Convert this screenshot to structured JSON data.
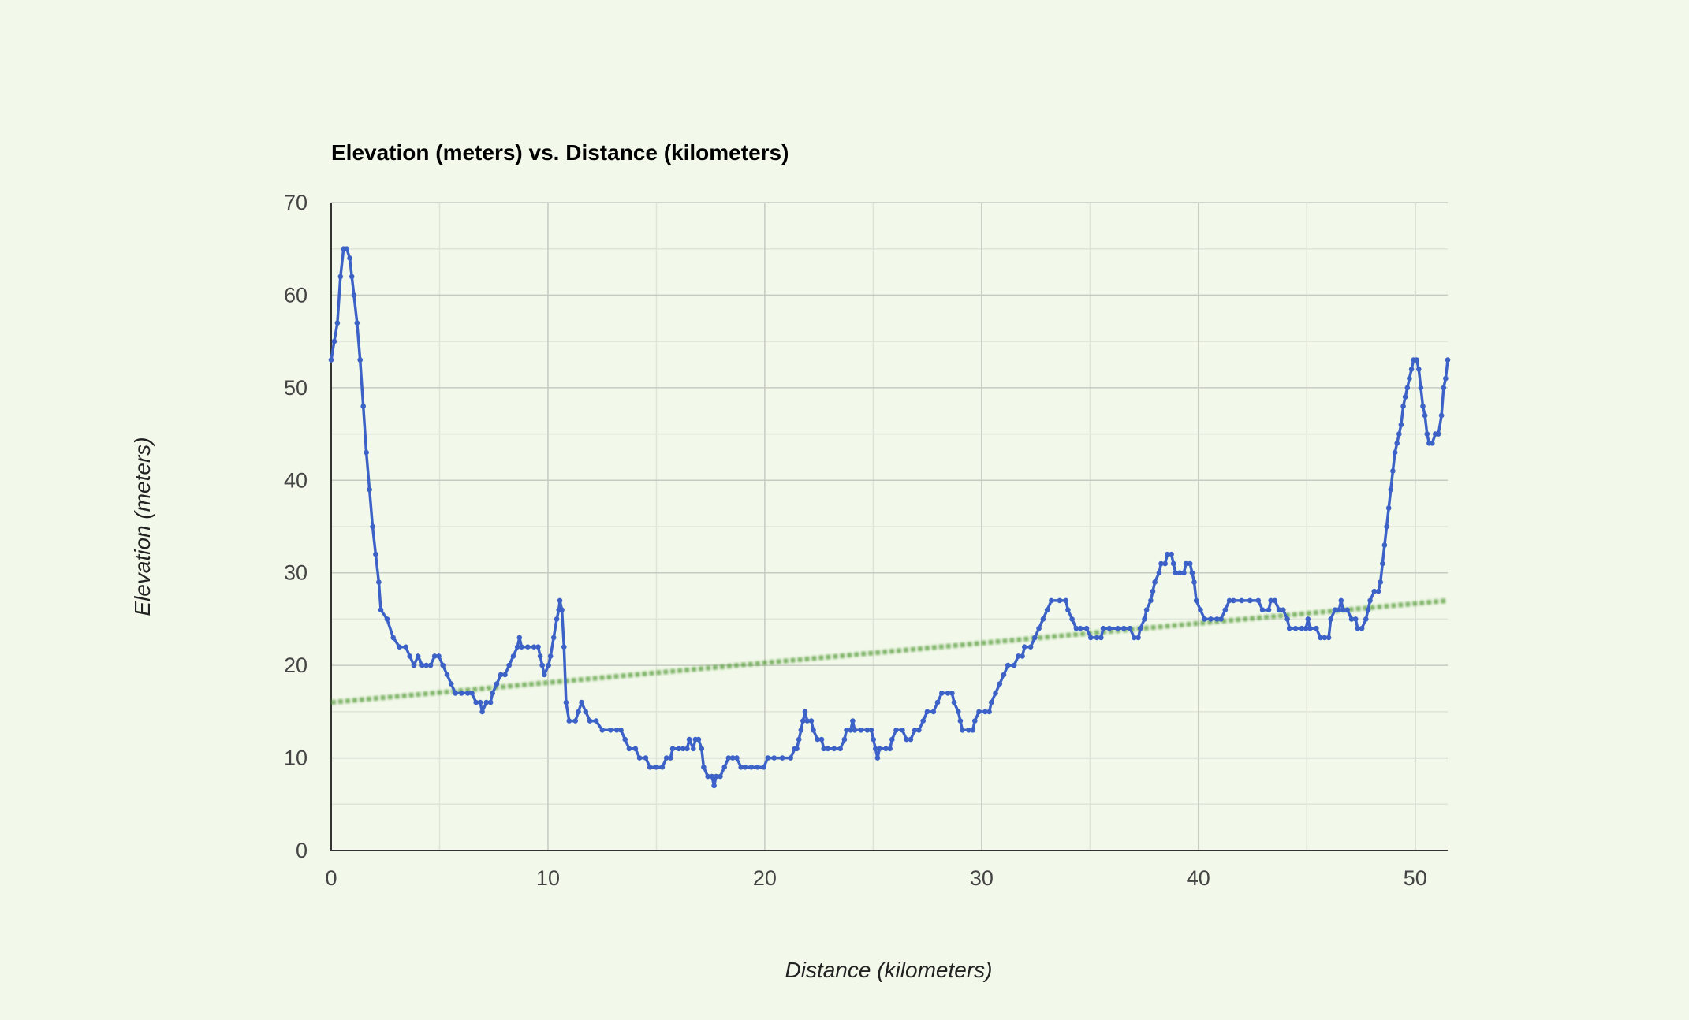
{
  "chart_data": {
    "type": "line",
    "title": "Elevation (meters) vs. Distance (kilometers)",
    "xlabel": "Distance (kilometers)",
    "ylabel": "Elevation (meters)",
    "xlim": [
      0,
      51.5
    ],
    "ylim": [
      0,
      70
    ],
    "xticks": [
      0,
      10,
      20,
      30,
      40,
      50
    ],
    "yticks": [
      0,
      10,
      20,
      30,
      40,
      50,
      60,
      70
    ],
    "grid": true,
    "series": [
      {
        "color": "#3c62c8",
        "marker": "circle",
        "points": [
          [
            0,
            53
          ],
          [
            0.15,
            55
          ],
          [
            0.3,
            57
          ],
          [
            0.45,
            62
          ],
          [
            0.6,
            65
          ],
          [
            0.75,
            65
          ],
          [
            0.9,
            64
          ],
          [
            1.0,
            62
          ],
          [
            1.1,
            60
          ],
          [
            1.25,
            57
          ],
          [
            1.4,
            53
          ],
          [
            1.55,
            48
          ],
          [
            1.7,
            43
          ],
          [
            1.85,
            39
          ],
          [
            2.0,
            35
          ],
          [
            2.15,
            32
          ],
          [
            2.3,
            29
          ],
          [
            2.4,
            26
          ],
          [
            2.7,
            25
          ],
          [
            3.0,
            23
          ],
          [
            3.3,
            22
          ],
          [
            3.6,
            22
          ],
          [
            3.8,
            21
          ],
          [
            4.0,
            20
          ],
          [
            4.2,
            21
          ],
          [
            4.4,
            20
          ],
          [
            4.6,
            20
          ],
          [
            4.8,
            20
          ],
          [
            5.0,
            21
          ],
          [
            5.2,
            21
          ],
          [
            5.4,
            20
          ],
          [
            5.6,
            19
          ],
          [
            5.8,
            18
          ],
          [
            6.0,
            17
          ],
          [
            6.3,
            17
          ],
          [
            6.6,
            17
          ],
          [
            6.8,
            17
          ],
          [
            7.0,
            16
          ],
          [
            7.2,
            16
          ],
          [
            7.3,
            15
          ],
          [
            7.5,
            16
          ],
          [
            7.7,
            16
          ],
          [
            7.8,
            17
          ],
          [
            8.0,
            18
          ],
          [
            8.2,
            19
          ],
          [
            8.4,
            19
          ],
          [
            8.6,
            20
          ],
          [
            8.8,
            21
          ],
          [
            9.0,
            22
          ],
          [
            9.1,
            23
          ],
          [
            9.2,
            22
          ],
          [
            9.5,
            22
          ],
          [
            9.8,
            22
          ],
          [
            10.0,
            22
          ],
          [
            10.1,
            21
          ],
          [
            10.2,
            20
          ],
          [
            10.3,
            19
          ],
          [
            10.5,
            20
          ],
          [
            10.6,
            21
          ],
          [
            10.75,
            23
          ],
          [
            10.9,
            25
          ],
          [
            11.0,
            26
          ],
          [
            11.05,
            27
          ],
          [
            11.15,
            26
          ],
          [
            11.25,
            22
          ],
          [
            11.35,
            16
          ],
          [
            11.5,
            14
          ],
          [
            11.8,
            14
          ],
          [
            11.95,
            15
          ],
          [
            12.1,
            16
          ],
          [
            12.3,
            15
          ],
          [
            12.5,
            14
          ],
          [
            12.8,
            14
          ],
          [
            13.1,
            13
          ],
          [
            13.5,
            13
          ],
          [
            13.8,
            13
          ],
          [
            14.0,
            13
          ],
          [
            14.2,
            12
          ],
          [
            14.4,
            11
          ],
          [
            14.7,
            11
          ],
          [
            14.9,
            10
          ],
          [
            15.2,
            10
          ],
          [
            15.4,
            9
          ],
          [
            15.7,
            9
          ],
          [
            16.0,
            9
          ],
          [
            16.2,
            10
          ],
          [
            16.4,
            10
          ],
          [
            16.5,
            11
          ],
          [
            16.8,
            11
          ],
          [
            17.0,
            11
          ],
          [
            17.2,
            11
          ],
          [
            17.3,
            12
          ],
          [
            17.5,
            11
          ],
          [
            17.6,
            12
          ],
          [
            17.75,
            12
          ],
          [
            17.9,
            11
          ],
          [
            18.0,
            9
          ],
          [
            18.2,
            8
          ],
          [
            18.4,
            8
          ],
          [
            18.5,
            7
          ],
          [
            18.6,
            8
          ],
          [
            18.8,
            8
          ],
          [
            19.0,
            9
          ],
          [
            19.2,
            10
          ],
          [
            19.4,
            10
          ],
          [
            19.6,
            10
          ],
          [
            19.8,
            9
          ],
          [
            20.0,
            9
          ],
          [
            20.3,
            9
          ],
          [
            20.6,
            9
          ],
          [
            20.9,
            9
          ],
          [
            21.1,
            10
          ],
          [
            21.4,
            10
          ],
          [
            21.8,
            10
          ],
          [
            22.2,
            10
          ],
          [
            22.4,
            11
          ],
          [
            22.5,
            11
          ],
          [
            22.6,
            12
          ],
          [
            22.7,
            13
          ],
          [
            22.8,
            14
          ],
          [
            22.9,
            15
          ],
          [
            23.0,
            14
          ],
          [
            23.2,
            14
          ],
          [
            23.3,
            13
          ],
          [
            23.5,
            12
          ],
          [
            23.7,
            12
          ],
          [
            23.8,
            11
          ],
          [
            24.0,
            11
          ],
          [
            24.3,
            11
          ],
          [
            24.6,
            11
          ],
          [
            24.8,
            12
          ],
          [
            24.9,
            13
          ],
          [
            25.1,
            13
          ],
          [
            25.2,
            14
          ],
          [
            25.3,
            13
          ],
          [
            25.6,
            13
          ],
          [
            25.9,
            13
          ],
          [
            26.1,
            13
          ],
          [
            26.2,
            12
          ],
          [
            26.3,
            11
          ],
          [
            26.4,
            10
          ],
          [
            26.5,
            11
          ],
          [
            26.8,
            11
          ],
          [
            27.0,
            11
          ],
          [
            27.1,
            12
          ],
          [
            27.3,
            13
          ],
          [
            27.6,
            13
          ],
          [
            27.8,
            12
          ],
          [
            28.0,
            12
          ],
          [
            28.2,
            13
          ],
          [
            28.4,
            13
          ],
          [
            28.6,
            14
          ],
          [
            28.8,
            15
          ],
          [
            29.1,
            15
          ],
          [
            29.3,
            16
          ],
          [
            29.5,
            17
          ],
          [
            29.8,
            17
          ],
          [
            30.0,
            17
          ],
          [
            30.1,
            16
          ],
          [
            30.3,
            15
          ],
          [
            30.4,
            14
          ],
          [
            30.5,
            13
          ],
          [
            30.8,
            13
          ],
          [
            31.0,
            13
          ],
          [
            31.1,
            14
          ],
          [
            31.3,
            15
          ],
          [
            31.6,
            15
          ],
          [
            31.8,
            15
          ],
          [
            31.9,
            16
          ],
          [
            32.1,
            17
          ],
          [
            32.3,
            18
          ],
          [
            32.5,
            19
          ],
          [
            32.7,
            20
          ],
          [
            33.0,
            20
          ],
          [
            33.2,
            21
          ],
          [
            33.4,
            21
          ],
          [
            33.5,
            22
          ],
          [
            33.8,
            22
          ],
          [
            34.0,
            23
          ],
          [
            34.2,
            24
          ],
          [
            34.4,
            25
          ],
          [
            34.6,
            26
          ],
          [
            34.8,
            27
          ],
          [
            35.2,
            27
          ],
          [
            35.5,
            27
          ],
          [
            35.6,
            26
          ],
          [
            35.8,
            25
          ],
          [
            36.0,
            24
          ],
          [
            36.2,
            24
          ],
          [
            36.5,
            24
          ],
          [
            36.7,
            23
          ],
          [
            37.0,
            23
          ],
          [
            37.2,
            23
          ],
          [
            37.3,
            24
          ],
          [
            37.6,
            24
          ],
          [
            38.0,
            24
          ],
          [
            38.3,
            24
          ],
          [
            38.6,
            24
          ],
          [
            38.8,
            23
          ],
          [
            39.0,
            23
          ],
          [
            39.1,
            24
          ],
          [
            39.3,
            25
          ],
          [
            39.4,
            26
          ],
          [
            39.6,
            27
          ],
          [
            39.7,
            28
          ],
          [
            39.8,
            29
          ],
          [
            40.0,
            30
          ],
          [
            40.1,
            31
          ],
          [
            40.3,
            31
          ],
          [
            40.4,
            32
          ],
          [
            40.6,
            32
          ],
          [
            40.7,
            31
          ],
          [
            40.8,
            30
          ],
          [
            41.0,
            30
          ],
          [
            41.2,
            30
          ],
          [
            41.3,
            31
          ],
          [
            41.5,
            31
          ],
          [
            41.6,
            30
          ],
          [
            41.7,
            29
          ],
          [
            41.8,
            27
          ],
          [
            42.0,
            26
          ],
          [
            42.2,
            25
          ],
          [
            42.5,
            25
          ],
          [
            42.8,
            25
          ],
          [
            43.0,
            25
          ],
          [
            43.2,
            26
          ],
          [
            43.4,
            27
          ],
          [
            43.6,
            27
          ],
          [
            44.0,
            27
          ],
          [
            44.4,
            27
          ],
          [
            44.8,
            27
          ],
          [
            45.0,
            26
          ],
          [
            45.3,
            26
          ],
          [
            45.4,
            27
          ],
          [
            45.6,
            27
          ],
          [
            45.8,
            26
          ],
          [
            46.0,
            26
          ],
          [
            46.2,
            25
          ],
          [
            46.3,
            24
          ],
          [
            46.6,
            24
          ],
          [
            46.9,
            24
          ],
          [
            47.1,
            24
          ],
          [
            47.2,
            25
          ],
          [
            47.3,
            24
          ],
          [
            47.6,
            24
          ],
          [
            47.8,
            23
          ],
          [
            48.0,
            23
          ],
          [
            48.2,
            23
          ],
          [
            48.3,
            25
          ],
          [
            48.5,
            26
          ],
          [
            48.7,
            26
          ],
          [
            48.8,
            27
          ],
          [
            48.9,
            26
          ],
          [
            49.1,
            26
          ],
          [
            49.3,
            25
          ],
          [
            49.5,
            25
          ],
          [
            49.6,
            24
          ],
          [
            49.8,
            24
          ],
          [
            50.0,
            25
          ],
          [
            50.1,
            26
          ],
          [
            50.2,
            27
          ],
          [
            50.4,
            28
          ],
          [
            50.6,
            28
          ],
          [
            50.7,
            29
          ],
          [
            50.8,
            31
          ],
          [
            50.9,
            33
          ],
          [
            51.0,
            35
          ],
          [
            51.1,
            37
          ],
          [
            51.2,
            39
          ],
          [
            51.3,
            41
          ],
          [
            51.4,
            43
          ],
          [
            51.5,
            44
          ],
          [
            51.6,
            45
          ],
          [
            51.7,
            46
          ],
          [
            51.8,
            48
          ],
          [
            51.9,
            49
          ],
          [
            52.0,
            50
          ],
          [
            52.1,
            51
          ],
          [
            52.2,
            52
          ],
          [
            52.3,
            53
          ],
          [
            52.45,
            53
          ],
          [
            52.55,
            52
          ],
          [
            52.65,
            50
          ],
          [
            52.75,
            48
          ],
          [
            52.85,
            47
          ],
          [
            52.95,
            45
          ],
          [
            53.05,
            44
          ],
          [
            53.2,
            44
          ],
          [
            53.35,
            45
          ],
          [
            53.5,
            45
          ],
          [
            53.65,
            47
          ],
          [
            53.75,
            50
          ],
          [
            53.85,
            51
          ],
          [
            53.95,
            53
          ]
        ]
      }
    ],
    "trendline": {
      "color": "#5a9e3c",
      "start": [
        0,
        16
      ],
      "end": [
        51.5,
        27
      ]
    }
  }
}
